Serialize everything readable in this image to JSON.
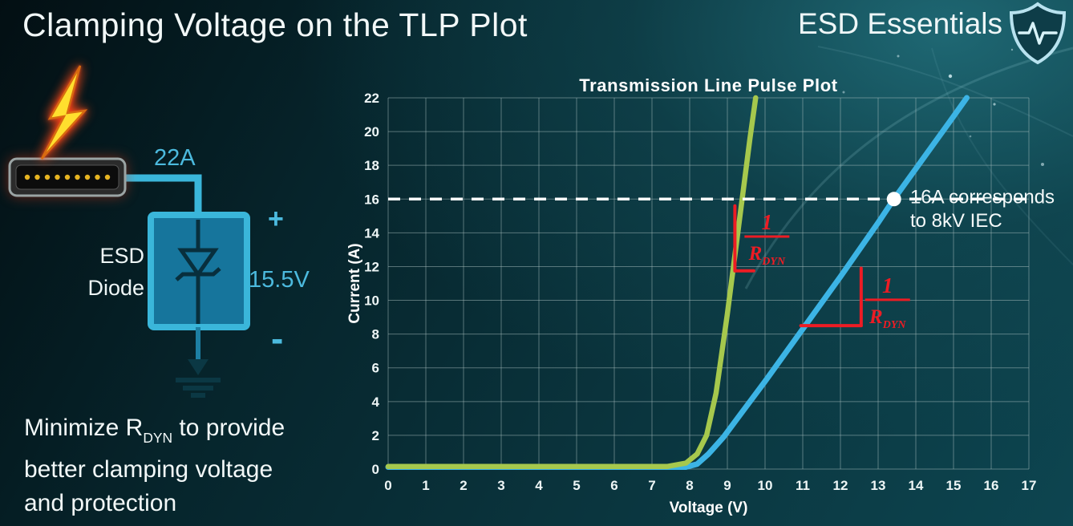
{
  "slide": {
    "title": "Clamping Voltage on the TLP Plot",
    "brand": "ESD Essentials",
    "note": {
      "l1a": "Minimize R",
      "l1sub": "DYN",
      "l1b": " to provide",
      "l2": "better clamping voltage",
      "l3": "and protection"
    }
  },
  "circuit": {
    "current_label": "22A",
    "plus": "+",
    "voltage_label": "15.5V",
    "minus": "-",
    "component_line1": "ESD",
    "component_line2": "Diode",
    "accent_color": "#3ab6da"
  },
  "chart_data": {
    "type": "line",
    "title": "Transmission Line Pulse Plot",
    "xlabel": "Voltage (V)",
    "ylabel": "Current (A)",
    "xlim": [
      0,
      17
    ],
    "ylim": [
      0,
      22
    ],
    "x_ticks": [
      0,
      1,
      2,
      3,
      4,
      5,
      6,
      7,
      8,
      9,
      10,
      11,
      12,
      13,
      14,
      15,
      16,
      17
    ],
    "y_ticks": [
      0,
      2,
      4,
      6,
      8,
      10,
      12,
      14,
      16,
      18,
      20,
      22
    ],
    "grid": true,
    "grid_color": "rgba(168,190,190,0.5)",
    "series": [
      {
        "name": "blue-curve",
        "color": "#3cb4e5",
        "width": 7,
        "points": [
          [
            0,
            0.12
          ],
          [
            7.9,
            0.12
          ],
          [
            8.2,
            0.3
          ],
          [
            8.5,
            0.9
          ],
          [
            8.9,
            1.9
          ],
          [
            9.4,
            3.4
          ],
          [
            10,
            5.2
          ],
          [
            11,
            8.3
          ],
          [
            12,
            11.4
          ],
          [
            13,
            14.6
          ],
          [
            13.42,
            16
          ],
          [
            14,
            17.8
          ],
          [
            15,
            20.9
          ],
          [
            15.35,
            22
          ]
        ]
      },
      {
        "name": "green-curve",
        "color": "#a6c84d",
        "width": 6.5,
        "points": [
          [
            0,
            0.15
          ],
          [
            7.4,
            0.15
          ],
          [
            7.9,
            0.35
          ],
          [
            8.2,
            0.9
          ],
          [
            8.45,
            2.0
          ],
          [
            8.7,
            4.5
          ],
          [
            9.0,
            9.2
          ],
          [
            9.3,
            14.4
          ],
          [
            9.6,
            19.6
          ],
          [
            9.75,
            22
          ]
        ]
      }
    ],
    "reference_line": {
      "y": 16,
      "color": "#ffffff",
      "style": "dashed"
    },
    "marker": {
      "x": 13.42,
      "y": 16,
      "color": "#ffffff",
      "radius": 9
    },
    "marker_label": {
      "x": 13.85,
      "y": [
        15.75,
        14.35
      ],
      "lines": [
        "16A corresponds",
        "to 8kV IEC"
      ]
    },
    "annotation_color": "#ed1c24",
    "frac_numerator": "1",
    "frac_den_base": "R",
    "frac_den_sub": "DYN",
    "slope_annotations": [
      {
        "lines": [
          [
            9.2,
            15.6,
            9.2,
            11.75
          ],
          [
            9.2,
            11.75,
            9.7,
            11.75
          ]
        ],
        "frac_x": 10.05,
        "frac_y": 15.35
      },
      {
        "lines": [
          [
            10.95,
            8.5,
            12.55,
            8.5
          ],
          [
            12.55,
            8.5,
            12.55,
            11.9
          ]
        ],
        "frac_x": 13.25,
        "frac_y": 11.6
      }
    ]
  }
}
